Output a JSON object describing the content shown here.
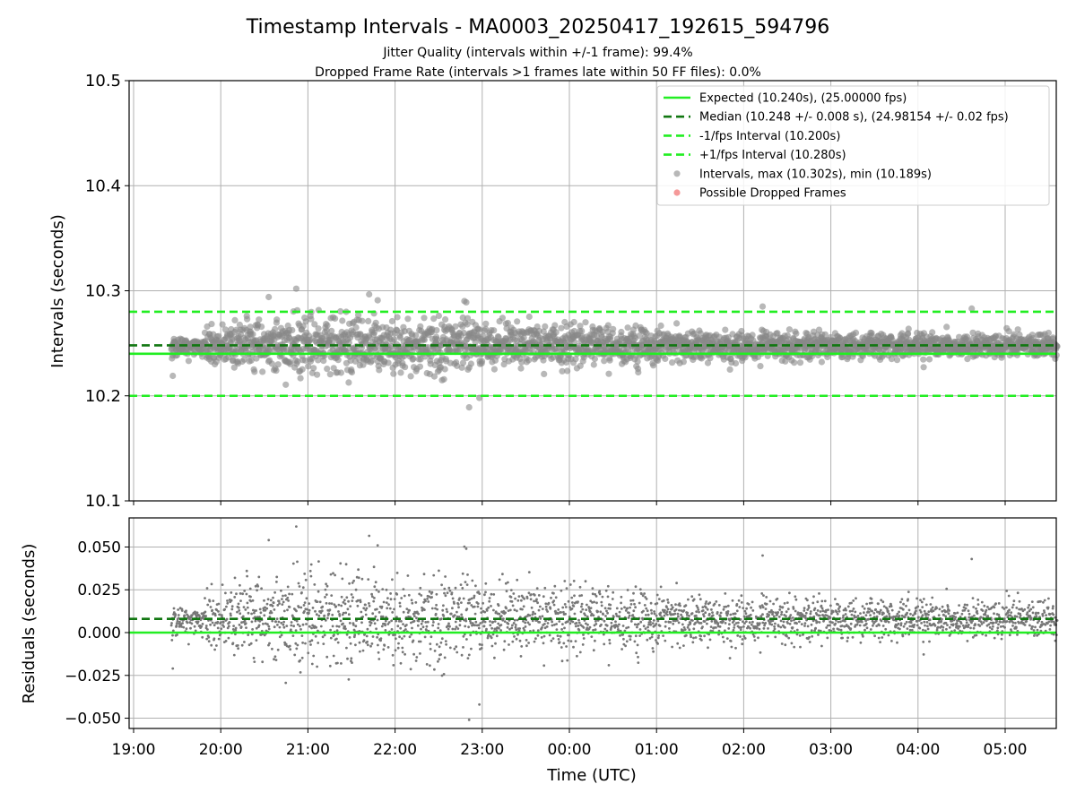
{
  "chart_data": [
    {
      "type": "scatter",
      "title": "Timestamp Intervals - MA0003_20250417_192615_594796",
      "subtitle_lines": [
        "Jitter Quality (intervals within +/-1 frame): 99.4%",
        "Dropped Frame Rate (intervals >1 frames late within 50 FF files): 0.0%"
      ],
      "xlabel": "",
      "ylabel": "Intervals (seconds)",
      "xlim": [
        "19:00",
        "05:36"
      ],
      "ylim": [
        10.1,
        10.5
      ],
      "y_ticks": [
        "10.1",
        "10.2",
        "10.3",
        "10.4",
        "10.5"
      ],
      "grid": true,
      "legend_position": "top-right",
      "reference_lines": [
        {
          "name": "Expected (10.240s), (25.00000 fps)",
          "y": 10.24,
          "color": "#22ee22",
          "style": "solid"
        },
        {
          "name": "Median (10.248 +/- 0.008 s), (24.98154 +/- 0.02 fps)",
          "y": 10.248,
          "color": "#117711",
          "style": "dashed"
        },
        {
          "name": "-1/fps Interval (10.200s)",
          "y": 10.2,
          "color": "#22ee22",
          "style": "dashed"
        },
        {
          "name": "+1/fps Interval (10.280s)",
          "y": 10.28,
          "color": "#22ee22",
          "style": "dashed"
        }
      ],
      "series": [
        {
          "name": "Intervals, max (10.302s), min (10.189s)",
          "color": "#888888",
          "x_range": [
            "19:26",
            "05:36"
          ],
          "median": 10.248,
          "max": 10.302,
          "min": 10.189,
          "notable_points": [
            {
              "x": "19:27",
              "y": 10.219
            },
            {
              "x": "20:33",
              "y": 10.294
            },
            {
              "x": "20:52",
              "y": 10.302
            },
            {
              "x": "21:48",
              "y": 10.291
            },
            {
              "x": "22:49",
              "y": 10.289
            },
            {
              "x": "22:51",
              "y": 10.189
            },
            {
              "x": "22:58",
              "y": 10.198
            },
            {
              "x": "02:13",
              "y": 10.285
            },
            {
              "x": "04:37",
              "y": 10.283
            }
          ]
        },
        {
          "name": "Possible Dropped Frames",
          "color": "#ee5555",
          "points": []
        }
      ]
    },
    {
      "type": "scatter",
      "title": "",
      "xlabel": "Time (UTC)",
      "ylabel": "Residuals (seconds)",
      "xlim": [
        "19:00",
        "05:36"
      ],
      "ylim": [
        -0.056,
        0.067
      ],
      "x_ticks": [
        "19:00",
        "20:00",
        "21:00",
        "22:00",
        "23:00",
        "00:00",
        "01:00",
        "02:00",
        "03:00",
        "04:00",
        "05:00"
      ],
      "y_ticks": [
        "−0.050",
        "−0.025",
        "0.000",
        "0.025",
        "0.050"
      ],
      "grid": true,
      "reference_lines": [
        {
          "y": 0.0,
          "color": "#22ee22",
          "style": "solid"
        },
        {
          "y": 0.008,
          "color": "#117711",
          "style": "dashed"
        }
      ],
      "series": [
        {
          "color": "#777777",
          "max": 0.062,
          "min": -0.051,
          "notable_points": [
            {
              "x": "19:27",
              "y": -0.021
            },
            {
              "x": "20:33",
              "y": 0.055
            },
            {
              "x": "20:52",
              "y": 0.062
            },
            {
              "x": "22:51",
              "y": -0.051
            },
            {
              "x": "05:00",
              "y": -0.021
            }
          ]
        }
      ]
    }
  ]
}
